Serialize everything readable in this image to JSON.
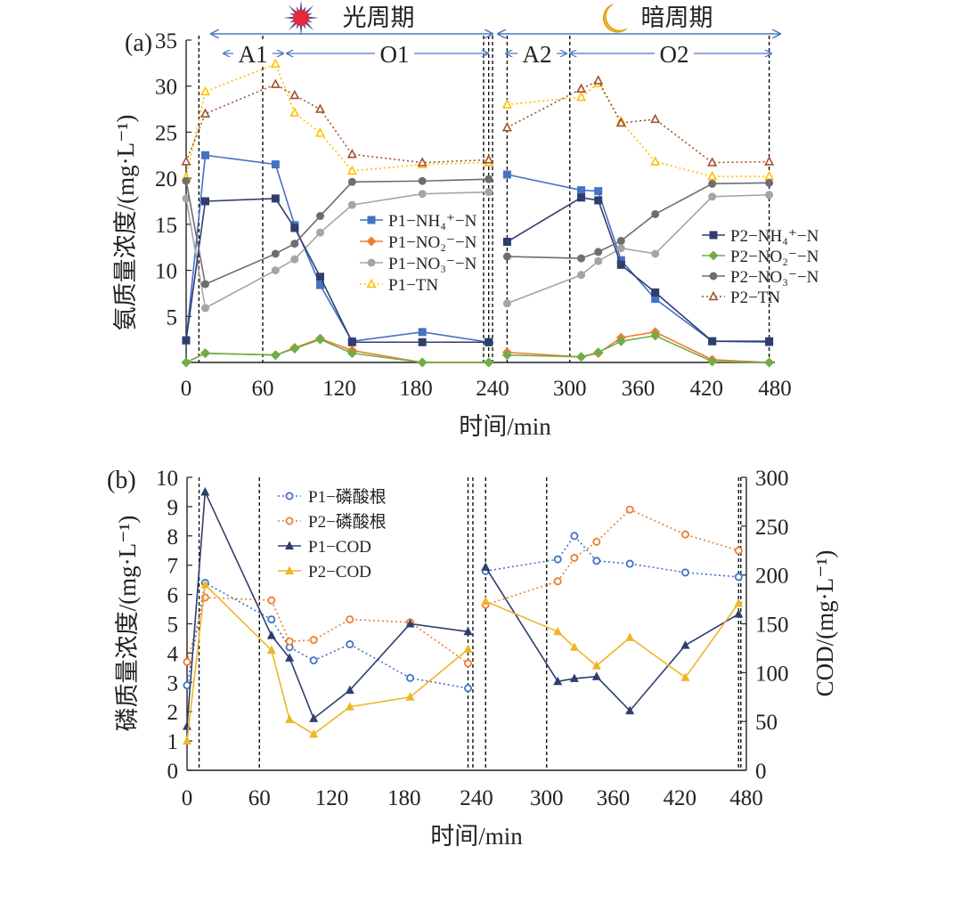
{
  "chart_data": [
    {
      "panel": "(a)",
      "type": "line",
      "xlabel": "时间/min",
      "ylabel": "氨质量浓度/(mg·L⁻¹)",
      "xlim": [
        0,
        480
      ],
      "ylim": [
        0,
        35
      ],
      "xticks": [
        0,
        60,
        120,
        180,
        240,
        300,
        360,
        420,
        480
      ],
      "yticks": [
        5,
        10,
        15,
        20,
        25,
        30,
        35
      ],
      "cycles": [
        {
          "label": "光周期",
          "icon": "sun-icon",
          "from": 0,
          "to": 240
        },
        {
          "label": "暗周期",
          "icon": "moon-icon",
          "from": 240,
          "to": 480
        }
      ],
      "phases": [
        {
          "label": "A1",
          "from": 0,
          "to": 60
        },
        {
          "label": "O1",
          "from": 60,
          "to": 240
        },
        {
          "label": "A2",
          "from": 240,
          "to": 300
        },
        {
          "label": "O2",
          "from": 300,
          "to": 480
        }
      ],
      "vlines": [
        10,
        60,
        233,
        237,
        240,
        245,
        300,
        475
      ],
      "series": [
        {
          "name": "P1−NH₄⁺−N",
          "color": "#4472c4",
          "marker": "square",
          "line": "solid",
          "x": [
            0,
            15,
            70,
            85,
            105,
            130,
            185,
            237
          ],
          "y": [
            2.4,
            22.5,
            21.5,
            14.9,
            8.4,
            2.3,
            3.3,
            2.2
          ]
        },
        {
          "name": "P1−NO₂⁻−N",
          "color": "#ed7d31",
          "marker": "diamond",
          "line": "solid",
          "x": [
            0,
            15,
            70,
            85,
            105,
            130,
            185,
            237
          ],
          "y": [
            0.0,
            1.0,
            0.8,
            1.6,
            2.6,
            1.3,
            0.0,
            0.0
          ]
        },
        {
          "name": "P1−NO₃⁻−N",
          "color": "#a5a5a5",
          "marker": "circle",
          "line": "solid",
          "x": [
            0,
            15,
            70,
            85,
            105,
            130,
            185,
            237
          ],
          "y": [
            17.8,
            5.9,
            10.0,
            11.2,
            14.1,
            17.1,
            18.3,
            18.5
          ]
        },
        {
          "name": "P1−TN",
          "color": "#ffc000",
          "marker": "triangle-open",
          "line": "dotted",
          "x": [
            0,
            15,
            70,
            85,
            105,
            130,
            185,
            237
          ],
          "y": [
            20.1,
            29.4,
            32.4,
            27.1,
            24.9,
            20.8,
            21.5,
            21.7
          ]
        },
        {
          "name": "P2−NH₄⁺−N",
          "color": "#2f3e6e",
          "marker": "square",
          "line": "solid",
          "x": [
            0,
            15,
            70,
            85,
            105,
            130,
            185,
            237
          ],
          "y": [
            2.4,
            17.5,
            17.8,
            14.6,
            9.3,
            2.2,
            2.2,
            2.2
          ]
        },
        {
          "name": "P2−NO₂⁻−N",
          "color": "#70ad47",
          "marker": "diamond",
          "line": "solid",
          "x": [
            0,
            15,
            70,
            85,
            105,
            130,
            185,
            237
          ],
          "y": [
            0.0,
            1.0,
            0.8,
            1.5,
            2.5,
            1.0,
            0.0,
            0.0
          ]
        },
        {
          "name": "P2−NO₃⁻−N",
          "color": "#6e6e6e",
          "marker": "circle",
          "line": "solid",
          "x": [
            0,
            15,
            70,
            85,
            105,
            130,
            185,
            237
          ],
          "y": [
            19.7,
            8.5,
            11.8,
            12.9,
            15.9,
            19.6,
            19.7,
            19.9
          ]
        },
        {
          "name": "P2−TN",
          "color": "#a0522d",
          "marker": "triangle-open",
          "line": "dotted",
          "x": [
            0,
            15,
            70,
            85,
            105,
            130,
            185,
            237
          ],
          "y": [
            21.8,
            27.0,
            30.2,
            29.0,
            27.5,
            22.6,
            21.7,
            22.0
          ]
        },
        {
          "name": "",
          "color": "#4472c4",
          "marker": "square",
          "line": "solid",
          "x": [
            245,
            310,
            325,
            345,
            375,
            425,
            475
          ],
          "y": [
            20.4,
            18.7,
            18.6,
            11.1,
            6.9,
            2.3,
            2.2
          ]
        },
        {
          "name": "",
          "color": "#ed7d31",
          "marker": "diamond",
          "line": "solid",
          "x": [
            245,
            310,
            325,
            345,
            375,
            425,
            475
          ],
          "y": [
            1.1,
            0.6,
            1.0,
            2.7,
            3.3,
            0.3,
            0.0
          ]
        },
        {
          "name": "",
          "color": "#a5a5a5",
          "marker": "circle",
          "line": "solid",
          "x": [
            245,
            310,
            325,
            345,
            375,
            425,
            475
          ],
          "y": [
            6.4,
            9.5,
            11.0,
            12.4,
            11.8,
            18.0,
            18.2
          ]
        },
        {
          "name": "",
          "color": "#ffc000",
          "marker": "triangle-open",
          "line": "dotted",
          "x": [
            245,
            310,
            325,
            345,
            375,
            425,
            475
          ],
          "y": [
            28.0,
            28.8,
            30.3,
            26.2,
            21.8,
            20.2,
            20.2
          ]
        },
        {
          "name": "",
          "color": "#2f3e6e",
          "marker": "square",
          "line": "solid",
          "x": [
            245,
            310,
            325,
            345,
            375,
            425,
            475
          ],
          "y": [
            13.1,
            17.9,
            17.6,
            10.6,
            7.6,
            2.3,
            2.3
          ]
        },
        {
          "name": "",
          "color": "#70ad47",
          "marker": "diamond",
          "line": "solid",
          "x": [
            245,
            310,
            325,
            345,
            375,
            425,
            475
          ],
          "y": [
            0.8,
            0.6,
            1.1,
            2.3,
            2.9,
            0.1,
            0.0
          ]
        },
        {
          "name": "",
          "color": "#6e6e6e",
          "marker": "circle",
          "line": "solid",
          "x": [
            245,
            310,
            325,
            345,
            375,
            425,
            475
          ],
          "y": [
            11.5,
            11.3,
            12.0,
            13.2,
            16.1,
            19.4,
            19.5
          ]
        },
        {
          "name": "",
          "color": "#a0522d",
          "marker": "triangle-open",
          "line": "dotted",
          "x": [
            245,
            310,
            325,
            345,
            375,
            425,
            475
          ],
          "y": [
            25.5,
            29.7,
            30.6,
            26.0,
            26.4,
            21.7,
            21.8
          ]
        }
      ],
      "legend_left": [
        "P1−NH₄⁺−N",
        "P1−NO₂⁻−N",
        "P1−NO₃⁻−N",
        "P1−TN"
      ],
      "legend_right": [
        "P2−NH₄⁺−N",
        "P2−NO₂⁻−N",
        "P2−NO₃⁻−N",
        "P2−TN"
      ],
      "legend_placement": [
        "center-left",
        "center-right"
      ],
      "grid": false
    },
    {
      "panel": "(b)",
      "type": "line",
      "xlabel": "时间/min",
      "ylabel": "磷质量浓度/(mg·L⁻¹)",
      "ylabel_right": "COD/(mg·L⁻¹)",
      "xlim": [
        0,
        480
      ],
      "ylim": [
        0,
        10
      ],
      "ylim_right": [
        0,
        300
      ],
      "xticks": [
        0,
        60,
        120,
        180,
        240,
        300,
        360,
        420,
        480
      ],
      "yticks": [
        0,
        1,
        2,
        3,
        4,
        5,
        6,
        7,
        8,
        9,
        10
      ],
      "yticks_right": [
        0,
        50,
        100,
        150,
        200,
        250,
        300
      ],
      "vlines": [
        10,
        60,
        233,
        237,
        245,
        300,
        473,
        475
      ],
      "series": [
        {
          "name": "P1−磷酸根",
          "color": "#4472c4",
          "marker": "circle-open",
          "line": "dotted",
          "axis": "left",
          "x": [
            0,
            15,
            70,
            85,
            105,
            135,
            185,
            233
          ],
          "y": [
            2.9,
            6.4,
            5.15,
            4.2,
            3.75,
            4.3,
            3.15,
            2.8
          ]
        },
        {
          "name": "P2−磷酸根",
          "color": "#ed7d31",
          "marker": "circle-open",
          "line": "dotted",
          "axis": "left",
          "x": [
            0,
            15,
            70,
            85,
            105,
            135,
            185,
            233
          ],
          "y": [
            3.7,
            5.9,
            5.8,
            4.4,
            4.45,
            5.15,
            5.05,
            3.65
          ]
        },
        {
          "name": "P1−COD",
          "color": "#2f3e6e",
          "marker": "triangle",
          "line": "solid",
          "axis": "right",
          "x": [
            0,
            15,
            70,
            85,
            105,
            135,
            185,
            233
          ],
          "y": [
            45,
            285,
            138,
            115,
            53,
            82,
            150,
            142
          ]
        },
        {
          "name": "P2−COD",
          "color": "#f0b429",
          "marker": "triangle",
          "line": "solid",
          "axis": "right",
          "x": [
            0,
            15,
            70,
            85,
            105,
            135,
            185,
            233
          ],
          "y": [
            30,
            190,
            123,
            52,
            37,
            65,
            75,
            124
          ]
        },
        {
          "name": "",
          "color": "#4472c4",
          "marker": "circle-open",
          "line": "dotted",
          "axis": "left",
          "x": [
            245,
            310,
            325,
            345,
            375,
            425,
            473
          ],
          "y": [
            6.8,
            7.2,
            8.0,
            7.15,
            7.05,
            6.75,
            6.6
          ]
        },
        {
          "name": "",
          "color": "#ed7d31",
          "marker": "circle-open",
          "line": "dotted",
          "axis": "left",
          "x": [
            245,
            310,
            325,
            345,
            375,
            425,
            473
          ],
          "y": [
            5.65,
            6.45,
            7.25,
            7.8,
            8.9,
            8.05,
            7.5
          ]
        },
        {
          "name": "",
          "color": "#2f3e6e",
          "marker": "triangle",
          "line": "solid",
          "axis": "right",
          "x": [
            245,
            310,
            325,
            345,
            375,
            425,
            473
          ],
          "y": [
            208,
            91,
            94,
            96,
            61,
            128,
            160
          ]
        },
        {
          "name": "",
          "color": "#f0b429",
          "marker": "triangle",
          "line": "solid",
          "axis": "right",
          "x": [
            245,
            310,
            325,
            345,
            375,
            425,
            473
          ],
          "y": [
            173,
            142,
            126,
            107,
            136,
            95,
            171
          ]
        }
      ],
      "legend": [
        "P1−磷酸根",
        "P2−磷酸根",
        "P1−COD",
        "P2−COD"
      ],
      "legend_placement": "top-left",
      "grid": false
    }
  ]
}
